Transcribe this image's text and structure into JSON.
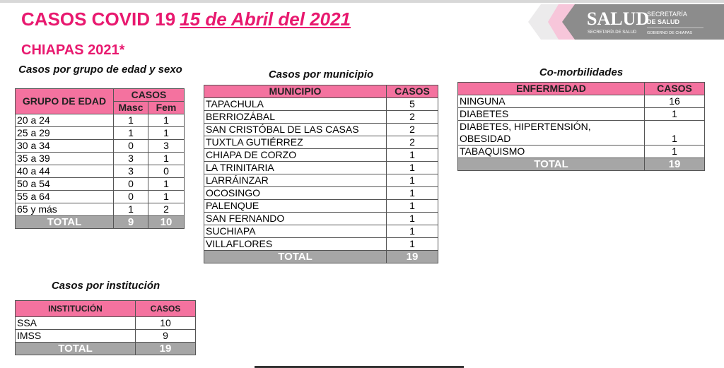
{
  "header": {
    "title": "CASOS COVID 19",
    "date": "15 de Abril del 2021",
    "subtitle": "CHIAPAS 2021*"
  },
  "logo": {
    "main": "SALUD",
    "sub": "SECRETARÍA DE SALUD",
    "right1": "SECRETARÍA",
    "right2": "DE SALUD",
    "right3": "GOBIERNO DE CHIAPAS"
  },
  "age": {
    "caption": "Casos por grupo de edad y sexo",
    "h_group": "GRUPO DE EDAD",
    "h_cases": "CASOS",
    "h_masc": "Masc",
    "h_fem": "Fem",
    "rows": [
      [
        "20 a 24",
        "1",
        "1"
      ],
      [
        "25 a 29",
        "1",
        "1"
      ],
      [
        "30 a 34",
        "0",
        "3"
      ],
      [
        "35 a 39",
        "3",
        "1"
      ],
      [
        "40 a 44",
        "3",
        "0"
      ],
      [
        "50 a 54",
        "0",
        "1"
      ],
      [
        "55 a 64",
        "0",
        "1"
      ],
      [
        "65 y más",
        "1",
        "2"
      ]
    ],
    "total_label": "TOTAL",
    "total_masc": "9",
    "total_fem": "10"
  },
  "municipio": {
    "caption": "Casos por municipio",
    "h_mun": "MUNICIPIO",
    "h_cases": "CASOS",
    "rows": [
      [
        "TAPACHULA",
        "5"
      ],
      [
        "BERRIOZÁBAL",
        "2"
      ],
      [
        "SAN CRISTÓBAL DE LAS CASAS",
        "2"
      ],
      [
        "TUXTLA GUTIÉRREZ",
        "2"
      ],
      [
        "CHIAPA DE CORZO",
        "1"
      ],
      [
        "LA TRINITARIA",
        "1"
      ],
      [
        "LARRÁINZAR",
        "1"
      ],
      [
        "OCOSINGO",
        "1"
      ],
      [
        "PALENQUE",
        "1"
      ],
      [
        "SAN FERNANDO",
        "1"
      ],
      [
        "SUCHIAPA",
        "1"
      ],
      [
        "VILLAFLORES",
        "1"
      ]
    ],
    "total_label": "TOTAL",
    "total": "19"
  },
  "comorb": {
    "caption": "Co-morbilidades",
    "h_dis": "ENFERMEDAD",
    "h_cases": "CASOS",
    "rows": [
      [
        "NINGUNA",
        "16"
      ],
      [
        "DIABETES",
        "1"
      ],
      [
        "DIABETES, HIPERTENSIÓN, OBESIDAD",
        "1"
      ],
      [
        "TABAQUISMO",
        "1"
      ]
    ],
    "total_label": "TOTAL",
    "total": "19"
  },
  "inst": {
    "caption": "Casos por institución",
    "h_inst": "INSTITUCIÓN",
    "h_cases": "CASOS",
    "rows": [
      [
        "SSA",
        "10"
      ],
      [
        "IMSS",
        "9"
      ]
    ],
    "total_label": "TOTAL",
    "total": "19"
  }
}
